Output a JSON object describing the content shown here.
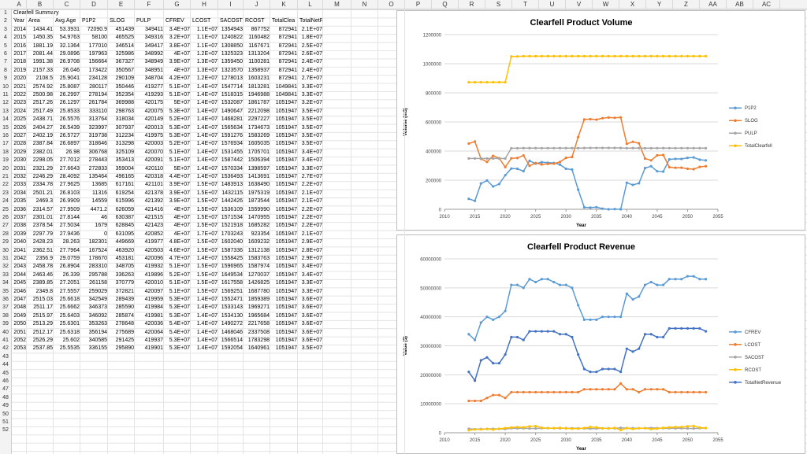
{
  "sheet": {
    "columns": [
      "A",
      "B",
      "C",
      "D",
      "E",
      "F",
      "G",
      "H",
      "I",
      "J",
      "K",
      "L",
      "M",
      "N",
      "O",
      "P",
      "Q",
      "R",
      "S",
      "T",
      "U",
      "V",
      "W",
      "X",
      "Y",
      "Z",
      "AA",
      "AB",
      "AC"
    ],
    "rows": 52,
    "title": "Clearfell Summary",
    "headers": [
      "Year",
      "Area",
      "Avg.Age",
      "P1P2",
      "SLOG",
      "PULP",
      "CFREV",
      "LCOST",
      "SACOST",
      "RCOST",
      "TotalClea",
      "TotalNetRevenue"
    ],
    "data": [
      [
        "2014",
        "1434.41",
        "53.3931",
        "72090.9",
        "451439",
        "349411",
        "3.4E+07",
        "1.1E+07",
        "1354943",
        "867752",
        "872941",
        "2.1E+07"
      ],
      [
        "2015",
        "1450.35",
        "54.9763",
        "58100",
        "465525",
        "349316",
        "3.2E+07",
        "1.1E+07",
        "1240822",
        "1160482",
        "872941",
        "1.8E+07"
      ],
      [
        "2016",
        "1881.19",
        "32.1364",
        "177010",
        "346514",
        "349417",
        "3.8E+07",
        "1.1E+07",
        "1308850",
        "1167671",
        "872941",
        "2.5E+07"
      ],
      [
        "2017",
        "2081.44",
        "29.0896",
        "197963",
        "325986",
        "348992",
        "4E+07",
        "1.2E+07",
        "1325323",
        "1313204",
        "872941",
        "2.6E+07"
      ],
      [
        "2018",
        "1991.38",
        "26.9708",
        "156664",
        "367327",
        "348949",
        "3.9E+07",
        "1.3E+07",
        "1359450",
        "1100281",
        "872941",
        "2.4E+07"
      ],
      [
        "2019",
        "2157.33",
        "26.046",
        "173422",
        "350567",
        "348951",
        "4E+07",
        "1.3E+07",
        "1323570",
        "1358937",
        "872941",
        "2.4E+07"
      ],
      [
        "2020",
        "2108.5",
        "25.9041",
        "234128",
        "290109",
        "348704",
        "4.2E+07",
        "1.2E+07",
        "1278013",
        "1603231",
        "872941",
        "2.7E+07"
      ],
      [
        "2021",
        "2574.92",
        "25.8087",
        "280117",
        "350446",
        "419277",
        "5.1E+07",
        "1.4E+07",
        "1547714",
        "1813281",
        "1049841",
        "3.3E+07"
      ],
      [
        "2022",
        "2500.98",
        "26.2997",
        "278194",
        "352354",
        "419293",
        "5.1E+07",
        "1.4E+07",
        "1518315",
        "1946988",
        "1049841",
        "3.3E+07"
      ],
      [
        "2023",
        "2517.26",
        "26.1297",
        "261784",
        "369988",
        "420175",
        "5E+07",
        "1.4E+07",
        "1532087",
        "1861787",
        "1051947",
        "3.2E+07"
      ],
      [
        "2024",
        "2517.49",
        "25.8533",
        "333110",
        "298763",
        "420075",
        "5.3E+07",
        "1.4E+07",
        "1490647",
        "2212098",
        "1051947",
        "3.5E+07"
      ],
      [
        "2025",
        "2438.71",
        "26.5576",
        "313764",
        "318034",
        "420149",
        "5.2E+07",
        "1.4E+07",
        "1468281",
        "2297227",
        "1051947",
        "3.5E+07"
      ],
      [
        "2026",
        "2404.27",
        "26.5439",
        "323997",
        "307937",
        "420013",
        "5.3E+07",
        "1.4E+07",
        "1565634",
        "1734673",
        "1051947",
        "3.5E+07"
      ],
      [
        "2027",
        "2402.19",
        "26.5727",
        "319738",
        "312234",
        "419975",
        "5.3E+07",
        "1.4E+07",
        "1591276",
        "1583269",
        "1051947",
        "3.5E+07"
      ],
      [
        "2028",
        "2387.84",
        "26.6897",
        "318646",
        "313298",
        "420003",
        "5.2E+07",
        "1.4E+07",
        "1576934",
        "1605035",
        "1051947",
        "3.5E+07"
      ],
      [
        "2029",
        "2382.01",
        "26.98",
        "306768",
        "325109",
        "420070",
        "5.1E+07",
        "1.4E+07",
        "1531455",
        "1705701",
        "1051947",
        "3.4E+07"
      ],
      [
        "2030",
        "2298.05",
        "27.7012",
        "278443",
        "353413",
        "420091",
        "5.1E+07",
        "1.4E+07",
        "1587442",
        "1506394",
        "1051947",
        "3.4E+07"
      ],
      [
        "2031",
        "2321.29",
        "27.6643",
        "272833",
        "359004",
        "420110",
        "5E+07",
        "1.4E+07",
        "1570334",
        "1398597",
        "1051947",
        "3.3E+07"
      ],
      [
        "2032",
        "2246.29",
        "28.4092",
        "135464",
        "496165",
        "420318",
        "4.4E+07",
        "1.4E+07",
        "1536493",
        "1413691",
        "1051947",
        "2.7E+07"
      ],
      [
        "2033",
        "2334.78",
        "27.9625",
        "13685",
        "617161",
        "421101",
        "3.9E+07",
        "1.5E+07",
        "1483913",
        "1638490",
        "1051947",
        "2.2E+07"
      ],
      [
        "2034",
        "2501.21",
        "26.8103",
        "11316",
        "619254",
        "421378",
        "3.9E+07",
        "1.5E+07",
        "1432115",
        "1975319",
        "1051947",
        "2.1E+07"
      ],
      [
        "2035",
        "2469.3",
        "26.9909",
        "14559",
        "615996",
        "421392",
        "3.9E+07",
        "1.5E+07",
        "1442426",
        "1873544",
        "1051947",
        "2.1E+07"
      ],
      [
        "2036",
        "2314.57",
        "27.9509",
        "4471.2",
        "626059",
        "421416",
        "4E+07",
        "1.5E+07",
        "1536109",
        "1559990",
        "1051947",
        "2.2E+07"
      ],
      [
        "2037",
        "2301.01",
        "27.8144",
        "46",
        "630387",
        "421515",
        "4E+07",
        "1.5E+07",
        "1571534",
        "1470955",
        "1051947",
        "2.2E+07"
      ],
      [
        "2038",
        "2378.54",
        "27.5034",
        "1679",
        "628845",
        "421423",
        "4E+07",
        "1.5E+07",
        "1521918",
        "1685282",
        "1051947",
        "2.2E+07"
      ],
      [
        "2039",
        "2297.79",
        "27.9436",
        "0",
        "631095",
        "420852",
        "4E+07",
        "1.7E+07",
        "1703243",
        "923354",
        "1051947",
        "2.1E+07"
      ],
      [
        "2040",
        "2428.23",
        "28.263",
        "182301",
        "449669",
        "419977",
        "4.8E+07",
        "1.5E+07",
        "1602040",
        "1609232",
        "1051947",
        "2.9E+07"
      ],
      [
        "2041",
        "2362.51",
        "27.7964",
        "167524",
        "463920",
        "420503",
        "4.6E+07",
        "1.5E+07",
        "1587336",
        "1312138",
        "1051947",
        "2.8E+07"
      ],
      [
        "2042",
        "2356.9",
        "29.0759",
        "178670",
        "453181",
        "420096",
        "4.7E+07",
        "1.4E+07",
        "1558425",
        "1583763",
        "1051947",
        "2.9E+07"
      ],
      [
        "2043",
        "2458.78",
        "26.8904",
        "283310",
        "348705",
        "419932",
        "5.1E+07",
        "1.5E+07",
        "1596965",
        "1587974",
        "1051947",
        "3.4E+07"
      ],
      [
        "2044",
        "2463.46",
        "26.339",
        "295788",
        "336263",
        "419896",
        "5.2E+07",
        "1.5E+07",
        "1649534",
        "1270037",
        "1051947",
        "3.4E+07"
      ],
      [
        "2045",
        "2389.85",
        "27.2051",
        "261158",
        "370779",
        "420010",
        "5.1E+07",
        "1.5E+07",
        "1617558",
        "1426825",
        "1051947",
        "3.3E+07"
      ],
      [
        "2046",
        "2349.8",
        "27.5557",
        "259029",
        "372821",
        "420097",
        "5.1E+07",
        "1.5E+07",
        "1569251",
        "1687780",
        "1051947",
        "3.3E+07"
      ],
      [
        "2047",
        "2515.03",
        "25.6618",
        "342549",
        "289439",
        "419959",
        "5.3E+07",
        "1.4E+07",
        "1552471",
        "1859389",
        "1051947",
        "3.6E+07"
      ],
      [
        "2048",
        "2511.17",
        "25.6662",
        "346373",
        "285590",
        "419984",
        "5.3E+07",
        "1.4E+07",
        "1533143",
        "1969271",
        "1051947",
        "3.6E+07"
      ],
      [
        "2049",
        "2515.97",
        "25.6403",
        "346092",
        "285874",
        "419981",
        "5.3E+07",
        "1.4E+07",
        "1534130",
        "1965684",
        "1051947",
        "3.6E+07"
      ],
      [
        "2050",
        "2513.29",
        "25.6301",
        "353263",
        "278648",
        "420036",
        "5.4E+07",
        "1.4E+07",
        "1490272",
        "2217658",
        "1051947",
        "3.6E+07"
      ],
      [
        "2051",
        "2512.17",
        "25.6318",
        "356194",
        "275689",
        "420064",
        "5.4E+07",
        "1.4E+07",
        "1468046",
        "2337508",
        "1051947",
        "3.6E+07"
      ],
      [
        "2052",
        "2526.29",
        "25.602",
        "340585",
        "291425",
        "419937",
        "5.3E+07",
        "1.4E+07",
        "1566514",
        "1783298",
        "1051947",
        "3.6E+07"
      ],
      [
        "2053",
        "2537.85",
        "25.5535",
        "336155",
        "295890",
        "419901",
        "5.3E+07",
        "1.4E+07",
        "1592054",
        "1640961",
        "1051947",
        "3.5E+07"
      ]
    ]
  },
  "chart_data": [
    {
      "type": "line",
      "title": "Clearfell Product Volume",
      "xlabel": "Year",
      "ylabel": "Volume (m3)",
      "xlim": [
        2010,
        2055
      ],
      "ylim": [
        0,
        1200000
      ],
      "xticks": [
        "2010",
        "2015",
        "2020",
        "2025",
        "2030",
        "2035",
        "2040",
        "2045",
        "2050",
        "2055"
      ],
      "yticks": [
        "0",
        "200000",
        "400000",
        "600000",
        "800000",
        "1000000",
        "1200000"
      ],
      "legend_position": "right",
      "series": [
        {
          "name": "P1P2",
          "color": "#5b9bd5",
          "col": 3
        },
        {
          "name": "SLOG",
          "color": "#ed7d31",
          "col": 4
        },
        {
          "name": "PULP",
          "color": "#a5a5a5",
          "col": 5
        },
        {
          "name": "TotalClearfell",
          "color": "#ffc000",
          "col": 10
        }
      ]
    },
    {
      "type": "line",
      "title": "Clearfell Product Revenue",
      "xlabel": "Year",
      "ylabel": "Value ($)",
      "xlim": [
        2010,
        2055
      ],
      "ylim": [
        0,
        60000000
      ],
      "xticks": [
        "2010",
        "2015",
        "2020",
        "2025",
        "2030",
        "2035",
        "2040",
        "2045",
        "2050",
        "2055"
      ],
      "yticks": [
        "0",
        "10000000",
        "20000000",
        "30000000",
        "40000000",
        "50000000",
        "60000000"
      ],
      "legend_position": "right",
      "series": [
        {
          "name": "CFREV",
          "color": "#5b9bd5",
          "col": 6
        },
        {
          "name": "LCOST",
          "color": "#ed7d31",
          "col": 7
        },
        {
          "name": "SACOST",
          "color": "#a5a5a5",
          "col": 8
        },
        {
          "name": "RCOST",
          "color": "#ffc000",
          "col": 9
        },
        {
          "name": "TotalNetRevenue",
          "color": "#4472c4",
          "col": 11
        }
      ]
    }
  ]
}
